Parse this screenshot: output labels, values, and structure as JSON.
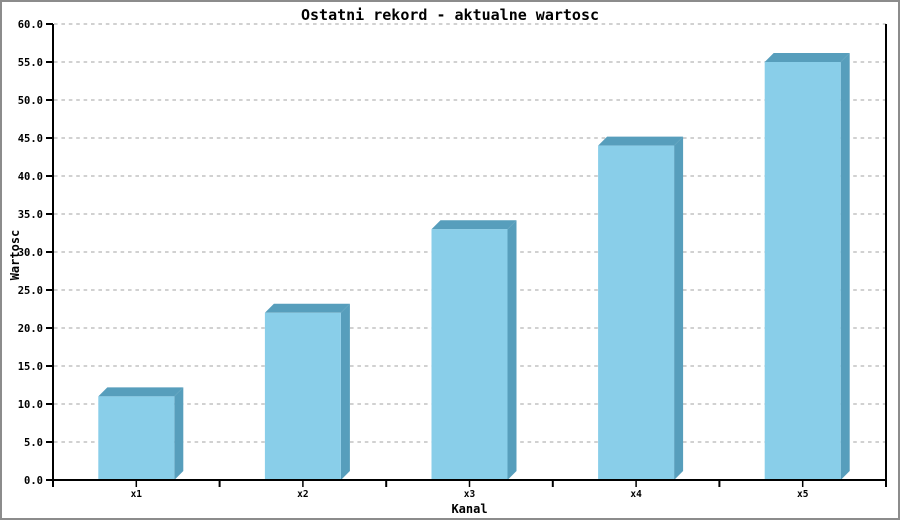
{
  "window": {
    "background": "#ffffff",
    "border_color": "#8c8c8c"
  },
  "chart_data": {
    "type": "bar",
    "style": "3d-bar",
    "title": "Ostatni rekord - aktualne wartosc",
    "xlabel": "Kanal",
    "ylabel": "Wartosc",
    "categories": [
      "x1",
      "x2",
      "x3",
      "x4",
      "x5"
    ],
    "values": [
      11,
      22,
      33,
      44,
      55
    ],
    "ylim": [
      0,
      60
    ],
    "ytick_step": 5,
    "ytick_labels": [
      "0.0",
      "5.0",
      "10.0",
      "15.0",
      "20.0",
      "25.0",
      "30.0",
      "35.0",
      "40.0",
      "45.0",
      "50.0",
      "55.0",
      "60.0"
    ],
    "grid": "horizontal-dashed",
    "legend": "none",
    "colors": {
      "bar_front": "#89CEE9",
      "bar_side": "#579EBC",
      "grid_line": "#c2c2c2",
      "axis_line": "#000000",
      "text": "#000000"
    }
  }
}
